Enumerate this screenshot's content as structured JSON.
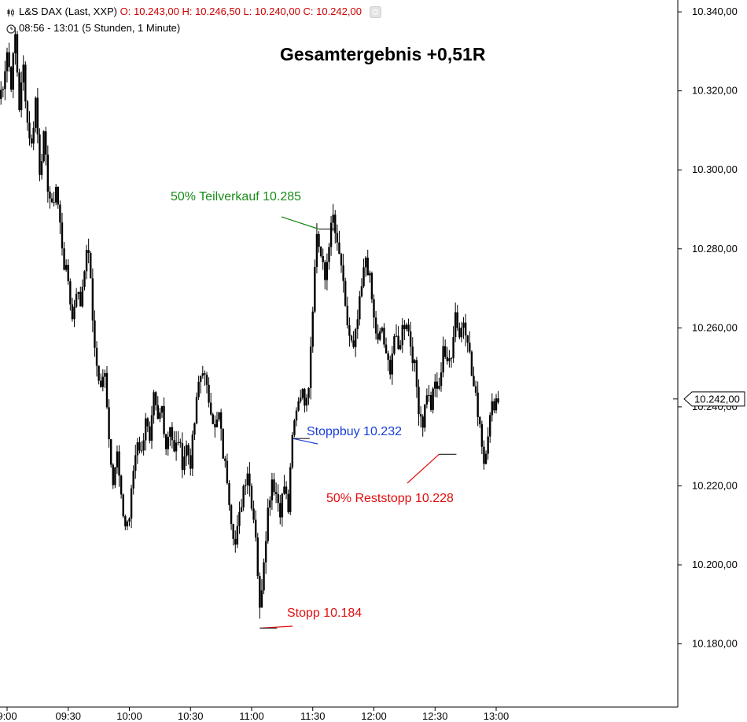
{
  "header": {
    "instrument": "L&S DAX (Last, XXP)",
    "open_label": "O:",
    "open": "10.243,00",
    "high_label": "H:",
    "high": "10.246,50",
    "low_label": "L:",
    "low": "10.240,00",
    "close_label": "C:",
    "close": "10.242,00",
    "timeframe": "08:56 - 13:01 (5 Stunden, 1 Minute)"
  },
  "chart_data": {
    "type": "candlestick",
    "title": "Gesamtergebnis +0,51R",
    "x_ticks": [
      "9:00",
      "09:30",
      "10:00",
      "10:30",
      "11:00",
      "11:30",
      "12:00",
      "12:30",
      "13:00"
    ],
    "y_ticks": [
      "10.340,00",
      "10.320,00",
      "10.300,00",
      "10.280,00",
      "10.260,00",
      "10.240,00",
      "10.220,00",
      "10.200,00",
      "10.180,00"
    ],
    "y_range": [
      10164,
      10343
    ],
    "last_price": "10.242,00",
    "last_price_value": 10242,
    "colors": {
      "bar": "#000000",
      "green": "#1a8a1a",
      "blue": "#1a3fd6",
      "red": "#e01010"
    },
    "annotations": [
      {
        "text": "50% Teilverkauf 10.285",
        "color": "green",
        "time": "11:33",
        "price": 10285
      },
      {
        "text": "Stoppbuy 10.232",
        "color": "blue",
        "time": "11:20",
        "price": 10232
      },
      {
        "text": "Stopp 10.184",
        "color": "red",
        "time": "11:04",
        "price": 10184
      },
      {
        "text": "50% Reststopp 10.228",
        "color": "red",
        "time": "12:32",
        "price": 10228
      }
    ],
    "series": [
      {
        "time": "08:56",
        "price": 10318
      },
      {
        "time": "08:58",
        "price": 10322
      },
      {
        "time": "09:00",
        "price": 10330
      },
      {
        "time": "09:02",
        "price": 10322
      },
      {
        "time": "09:04",
        "price": 10334
      },
      {
        "time": "09:06",
        "price": 10316
      },
      {
        "time": "09:08",
        "price": 10326
      },
      {
        "time": "09:10",
        "price": 10312
      },
      {
        "time": "09:12",
        "price": 10306
      },
      {
        "time": "09:14",
        "price": 10318
      },
      {
        "time": "09:16",
        "price": 10300
      },
      {
        "time": "09:18",
        "price": 10308
      },
      {
        "time": "09:20",
        "price": 10296
      },
      {
        "time": "09:22",
        "price": 10290
      },
      {
        "time": "09:24",
        "price": 10296
      },
      {
        "time": "09:26",
        "price": 10286
      },
      {
        "time": "09:28",
        "price": 10276
      },
      {
        "time": "09:30",
        "price": 10272
      },
      {
        "time": "09:32",
        "price": 10262
      },
      {
        "time": "09:34",
        "price": 10270
      },
      {
        "time": "09:36",
        "price": 10266
      },
      {
        "time": "09:38",
        "price": 10276
      },
      {
        "time": "09:40",
        "price": 10280
      },
      {
        "time": "09:42",
        "price": 10262
      },
      {
        "time": "09:44",
        "price": 10250
      },
      {
        "time": "09:46",
        "price": 10244
      },
      {
        "time": "09:48",
        "price": 10250
      },
      {
        "time": "09:50",
        "price": 10232
      },
      {
        "time": "09:52",
        "price": 10222
      },
      {
        "time": "09:54",
        "price": 10228
      },
      {
        "time": "09:56",
        "price": 10216
      },
      {
        "time": "09:58",
        "price": 10210
      },
      {
        "time": "10:00",
        "price": 10212
      },
      {
        "time": "10:02",
        "price": 10224
      },
      {
        "time": "10:04",
        "price": 10232
      },
      {
        "time": "10:06",
        "price": 10228
      },
      {
        "time": "10:08",
        "price": 10238
      },
      {
        "time": "10:10",
        "price": 10230
      },
      {
        "time": "10:12",
        "price": 10242
      },
      {
        "time": "10:14",
        "price": 10236
      },
      {
        "time": "10:16",
        "price": 10240
      },
      {
        "time": "10:18",
        "price": 10230
      },
      {
        "time": "10:20",
        "price": 10236
      },
      {
        "time": "10:22",
        "price": 10228
      },
      {
        "time": "10:24",
        "price": 10232
      },
      {
        "time": "10:26",
        "price": 10226
      },
      {
        "time": "10:28",
        "price": 10230
      },
      {
        "time": "10:30",
        "price": 10226
      },
      {
        "time": "10:32",
        "price": 10236
      },
      {
        "time": "10:34",
        "price": 10246
      },
      {
        "time": "10:36",
        "price": 10250
      },
      {
        "time": "10:38",
        "price": 10244
      },
      {
        "time": "10:40",
        "price": 10240
      },
      {
        "time": "10:42",
        "price": 10234
      },
      {
        "time": "10:44",
        "price": 10238
      },
      {
        "time": "10:46",
        "price": 10228
      },
      {
        "time": "10:48",
        "price": 10222
      },
      {
        "time": "10:50",
        "price": 10212
      },
      {
        "time": "10:52",
        "price": 10205
      },
      {
        "time": "10:54",
        "price": 10212
      },
      {
        "time": "10:56",
        "price": 10220
      },
      {
        "time": "10:58",
        "price": 10224
      },
      {
        "time": "11:00",
        "price": 10216
      },
      {
        "time": "11:02",
        "price": 10208
      },
      {
        "time": "11:04",
        "price": 10188
      },
      {
        "time": "11:06",
        "price": 10202
      },
      {
        "time": "11:08",
        "price": 10214
      },
      {
        "time": "11:10",
        "price": 10222
      },
      {
        "time": "11:12",
        "price": 10218
      },
      {
        "time": "11:14",
        "price": 10214
      },
      {
        "time": "11:16",
        "price": 10220
      },
      {
        "time": "11:18",
        "price": 10214
      },
      {
        "time": "11:20",
        "price": 10232
      },
      {
        "time": "11:22",
        "price": 10240
      },
      {
        "time": "11:24",
        "price": 10244
      },
      {
        "time": "11:26",
        "price": 10242
      },
      {
        "time": "11:28",
        "price": 10246
      },
      {
        "time": "11:30",
        "price": 10266
      },
      {
        "time": "11:32",
        "price": 10284
      },
      {
        "time": "11:34",
        "price": 10278
      },
      {
        "time": "11:36",
        "price": 10272
      },
      {
        "time": "11:38",
        "price": 10282
      },
      {
        "time": "11:40",
        "price": 10288
      },
      {
        "time": "11:42",
        "price": 10280
      },
      {
        "time": "11:44",
        "price": 10276
      },
      {
        "time": "11:46",
        "price": 10264
      },
      {
        "time": "11:48",
        "price": 10258
      },
      {
        "time": "11:50",
        "price": 10254
      },
      {
        "time": "11:52",
        "price": 10262
      },
      {
        "time": "11:54",
        "price": 10270
      },
      {
        "time": "11:56",
        "price": 10278
      },
      {
        "time": "11:58",
        "price": 10272
      },
      {
        "time": "12:00",
        "price": 10262
      },
      {
        "time": "12:02",
        "price": 10256
      },
      {
        "time": "12:04",
        "price": 10260
      },
      {
        "time": "12:06",
        "price": 10252
      },
      {
        "time": "12:08",
        "price": 10250
      },
      {
        "time": "12:10",
        "price": 10258
      },
      {
        "time": "12:12",
        "price": 10254
      },
      {
        "time": "12:14",
        "price": 10260
      },
      {
        "time": "12:16",
        "price": 10262
      },
      {
        "time": "12:18",
        "price": 10256
      },
      {
        "time": "12:20",
        "price": 10250
      },
      {
        "time": "12:22",
        "price": 10240
      },
      {
        "time": "12:24",
        "price": 10236
      },
      {
        "time": "12:26",
        "price": 10244
      },
      {
        "time": "12:28",
        "price": 10240
      },
      {
        "time": "12:30",
        "price": 10246
      },
      {
        "time": "12:32",
        "price": 10244
      },
      {
        "time": "12:34",
        "price": 10256
      },
      {
        "time": "12:36",
        "price": 10250
      },
      {
        "time": "12:38",
        "price": 10254
      },
      {
        "time": "12:40",
        "price": 10264
      },
      {
        "time": "12:42",
        "price": 10258
      },
      {
        "time": "12:44",
        "price": 10262
      },
      {
        "time": "12:46",
        "price": 10258
      },
      {
        "time": "12:48",
        "price": 10248
      },
      {
        "time": "12:50",
        "price": 10242
      },
      {
        "time": "12:52",
        "price": 10236
      },
      {
        "time": "12:54",
        "price": 10226
      },
      {
        "time": "12:56",
        "price": 10234
      },
      {
        "time": "12:58",
        "price": 10240
      },
      {
        "time": "13:00",
        "price": 10242
      }
    ]
  }
}
